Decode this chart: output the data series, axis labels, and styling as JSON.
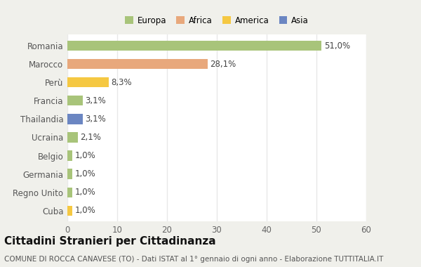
{
  "categories": [
    "Romania",
    "Marocco",
    "Perù",
    "Francia",
    "Thailandia",
    "Ucraina",
    "Belgio",
    "Germania",
    "Regno Unito",
    "Cuba"
  ],
  "values": [
    51.0,
    28.1,
    8.3,
    3.1,
    3.1,
    2.1,
    1.0,
    1.0,
    1.0,
    1.0
  ],
  "labels": [
    "51,0%",
    "28,1%",
    "8,3%",
    "3,1%",
    "3,1%",
    "2,1%",
    "1,0%",
    "1,0%",
    "1,0%",
    "1,0%"
  ],
  "colors": [
    "#a8c47a",
    "#e8a87c",
    "#f5c842",
    "#a8c47a",
    "#6b86c2",
    "#a8c47a",
    "#a8c47a",
    "#a8c47a",
    "#a8c47a",
    "#f5c842"
  ],
  "legend_labels": [
    "Europa",
    "Africa",
    "America",
    "Asia"
  ],
  "legend_colors": [
    "#a8c47a",
    "#e8a87c",
    "#f5c842",
    "#6b86c2"
  ],
  "title": "Cittadini Stranieri per Cittadinanza",
  "subtitle": "COMUNE DI ROCCA CANAVESE (TO) - Dati ISTAT al 1° gennaio di ogni anno - Elaborazione TUTTITALIA.IT",
  "xlim": [
    0,
    60
  ],
  "xticks": [
    0,
    10,
    20,
    30,
    40,
    50,
    60
  ],
  "outer_bg": "#f0f0eb",
  "plot_bg": "#ffffff",
  "grid_color": "#e8e8e8",
  "title_fontsize": 11,
  "subtitle_fontsize": 7.5,
  "label_fontsize": 8.5,
  "tick_fontsize": 8.5
}
